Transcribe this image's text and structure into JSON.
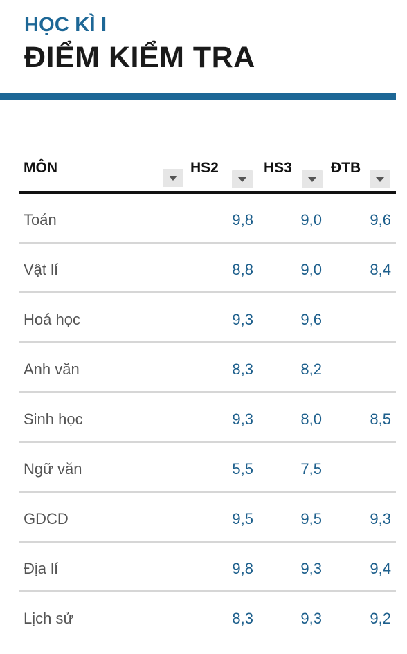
{
  "header": {
    "subtitle": "HỌC KÌ I",
    "title": "ĐIỂM KIỂM TRA"
  },
  "colors": {
    "accent": "#1d6796",
    "number": "#1d5f8c",
    "subject": "#555555"
  },
  "table": {
    "columns": [
      {
        "key": "subject",
        "label": "MÔN"
      },
      {
        "key": "hs2",
        "label": "HS2"
      },
      {
        "key": "hs3",
        "label": "HS3"
      },
      {
        "key": "dtb",
        "label": "ĐTB"
      }
    ],
    "rows": [
      {
        "subject": "Toán",
        "hs2": "9,8",
        "hs3": "9,0",
        "dtb": "9,6"
      },
      {
        "subject": "Vật lí",
        "hs2": "8,8",
        "hs3": "9,0",
        "dtb": "8,4"
      },
      {
        "subject": "Hoá học",
        "hs2": "9,3",
        "hs3": "9,6",
        "dtb": ""
      },
      {
        "subject": "Anh văn",
        "hs2": "8,3",
        "hs3": "8,2",
        "dtb": ""
      },
      {
        "subject": "Sinh học",
        "hs2": "9,3",
        "hs3": "8,0",
        "dtb": "8,5"
      },
      {
        "subject": "Ngữ văn",
        "hs2": "5,5",
        "hs3": "7,5",
        "dtb": ""
      },
      {
        "subject": "GDCD",
        "hs2": "9,5",
        "hs3": "9,5",
        "dtb": "9,3"
      },
      {
        "subject": "Địa lí",
        "hs2": "9,8",
        "hs3": "9,3",
        "dtb": "9,4"
      },
      {
        "subject": "Lịch sử",
        "hs2": "8,3",
        "hs3": "9,3",
        "dtb": "9,2"
      }
    ]
  },
  "icons": {
    "sort": "chevron-down-icon"
  }
}
